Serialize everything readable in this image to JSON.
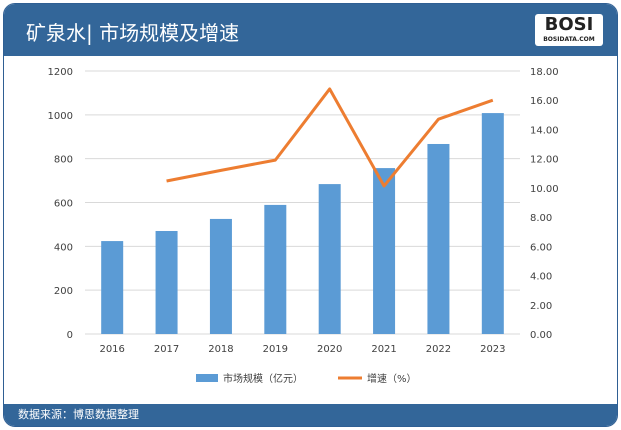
{
  "header": {
    "title": "矿泉水| 市场规模及增速",
    "logo": "BOSI",
    "logo_sub": "BOSIDATA.COM"
  },
  "footer": {
    "source": "数据来源：博思数据整理"
  },
  "chart_data": {
    "type": "bar+line",
    "categories": [
      "2016",
      "2017",
      "2018",
      "2019",
      "2020",
      "2021",
      "2022",
      "2023"
    ],
    "series": [
      {
        "name": "市场规模（亿元）",
        "type": "bar",
        "axis": "left",
        "color": "#5b9bd5",
        "values": [
          424,
          470,
          525,
          589,
          684,
          757,
          867,
          1008
        ]
      },
      {
        "name": "增速（%）",
        "type": "line",
        "axis": "right",
        "color": "#ed7d31",
        "values": [
          null,
          10.47,
          11.2,
          11.9,
          16.77,
          10.13,
          14.7,
          16.0
        ]
      }
    ],
    "ylim_left": [
      0,
      1200
    ],
    "yticks_left": [
      "0",
      "200",
      "400",
      "600",
      "800",
      "1000",
      "1200"
    ],
    "ylim_right": [
      0,
      18
    ],
    "yticks_right": [
      "0.00",
      "2.00",
      "4.00",
      "6.00",
      "8.00",
      "10.00",
      "12.00",
      "14.00",
      "16.00",
      "18.00"
    ],
    "grid": true,
    "legend": "bottom"
  }
}
